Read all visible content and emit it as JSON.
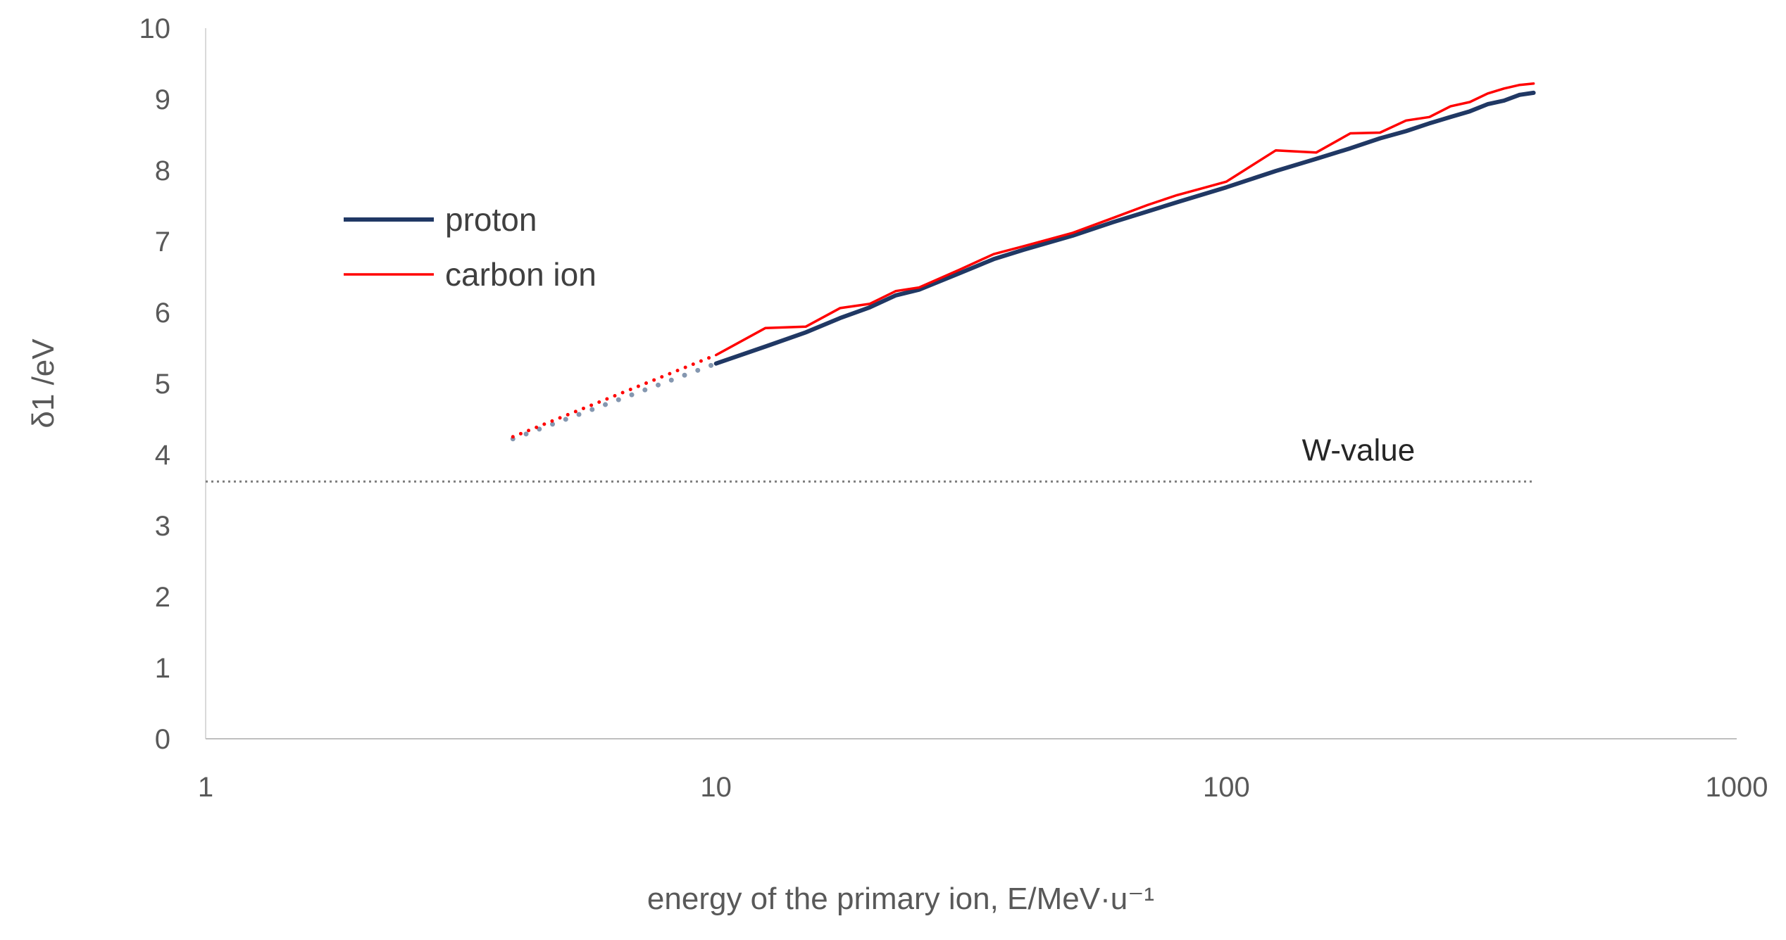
{
  "chart_data": {
    "type": "line",
    "title": "",
    "xlabel": "energy of the primary ion, E/MeV·u⁻¹",
    "ylabel": "δ1 /eV",
    "xscale": "log",
    "xlim": [
      1,
      1000
    ],
    "ylim": [
      0,
      10
    ],
    "x_ticks": [
      1,
      10,
      100,
      1000
    ],
    "x_tick_labels": [
      "1",
      "10",
      "100",
      "1000"
    ],
    "y_ticks": [
      0,
      1,
      2,
      3,
      4,
      5,
      6,
      7,
      8,
      9,
      10
    ],
    "y_tick_labels": [
      "0",
      "1",
      "2",
      "3",
      "4",
      "5",
      "6",
      "7",
      "8",
      "9",
      "10"
    ],
    "grid": false,
    "legend_position": "upper-left",
    "series": [
      {
        "name": "proton",
        "color": "#203864",
        "style": "solid",
        "x": [
          10,
          12.5,
          15,
          17.5,
          20,
          22.5,
          25,
          30,
          35,
          40,
          50,
          60,
          70,
          80,
          90,
          100,
          125,
          150,
          175,
          200,
          225,
          250,
          275,
          300,
          325,
          350,
          375,
          400
        ],
        "y": [
          5.28,
          5.52,
          5.72,
          5.92,
          6.07,
          6.24,
          6.32,
          6.55,
          6.75,
          6.88,
          7.08,
          7.27,
          7.42,
          7.55,
          7.66,
          7.76,
          7.99,
          8.16,
          8.31,
          8.45,
          8.55,
          8.66,
          8.75,
          8.83,
          8.93,
          8.98,
          9.06,
          9.09
        ]
      },
      {
        "name": "proton extrapolation",
        "color": "#8497b0",
        "style": "dotted",
        "x": [
          4,
          10
        ],
        "y": [
          4.22,
          5.28
        ]
      },
      {
        "name": "carbon ion",
        "color": "#ff0000",
        "style": "solid",
        "x": [
          10,
          12.5,
          15,
          17.5,
          20,
          22.5,
          25,
          30,
          35,
          40,
          50,
          60,
          70,
          80,
          90,
          100,
          125,
          150,
          175,
          200,
          225,
          250,
          275,
          300,
          325,
          350,
          375,
          400
        ],
        "y": [
          5.4,
          5.78,
          5.8,
          6.06,
          6.12,
          6.3,
          6.35,
          6.6,
          6.82,
          6.93,
          7.12,
          7.33,
          7.51,
          7.65,
          7.75,
          7.84,
          8.28,
          8.25,
          8.52,
          8.53,
          8.7,
          8.75,
          8.9,
          8.96,
          9.08,
          9.15,
          9.2,
          9.22
        ]
      },
      {
        "name": "carbon ion extrapolation",
        "color": "#ff0000",
        "style": "dotted",
        "x": [
          4,
          10
        ],
        "y": [
          4.25,
          5.4
        ]
      }
    ],
    "reference_line": {
      "label": "W-value",
      "y": 3.62,
      "x_start": 1,
      "x_end": 400,
      "color": "#7f7f7f",
      "style": "dotted"
    },
    "legend": [
      {
        "label": "proton",
        "color": "#203864",
        "width_key": "proton"
      },
      {
        "label": "carbon ion",
        "color": "#ff0000",
        "width_key": "carbon"
      }
    ]
  }
}
